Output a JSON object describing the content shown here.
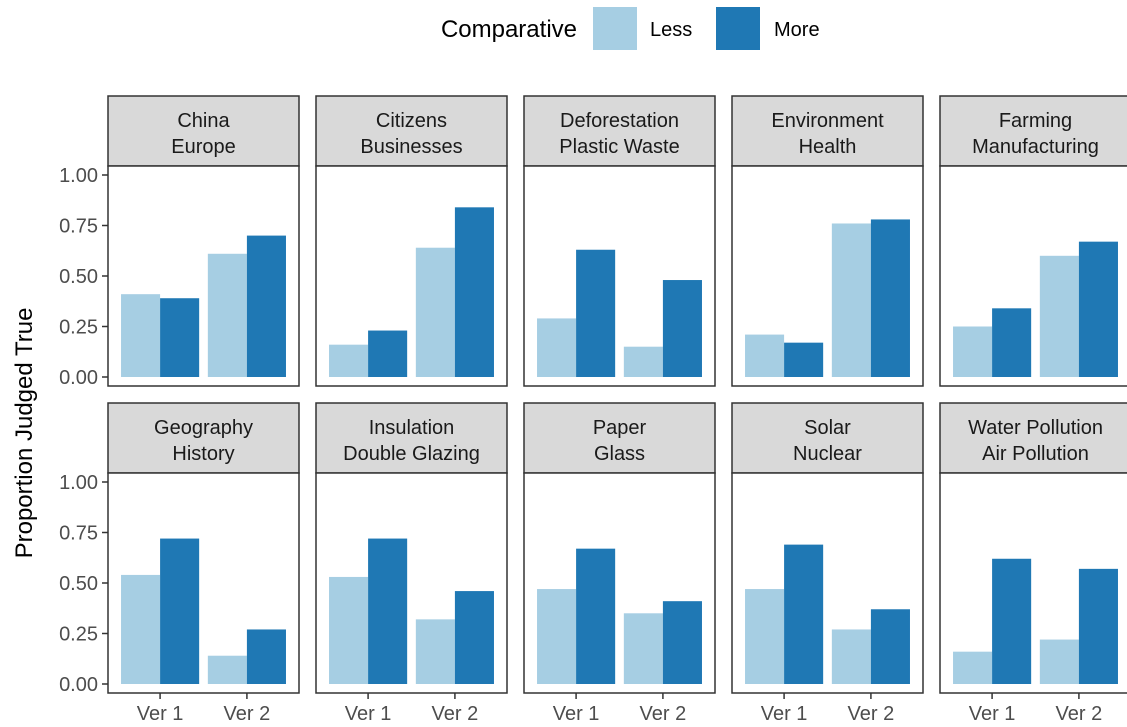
{
  "legend": {
    "title": "Comparative",
    "items": [
      {
        "label": "Less",
        "color": "#a6cee3"
      },
      {
        "label": "More",
        "color": "#1f78b4"
      }
    ],
    "position": "top"
  },
  "chart_data": {
    "type": "bar",
    "ylabel": "Proportion Judged True",
    "xlabel": "",
    "ylim": [
      0,
      1
    ],
    "yticks": [
      "0.00",
      "0.25",
      "0.50",
      "0.75",
      "1.00"
    ],
    "categories": [
      "Ver 1",
      "Ver 2"
    ],
    "series_names": [
      "Less",
      "More"
    ],
    "series_colors": [
      "#a6cee3",
      "#1f78b4"
    ],
    "panels": [
      {
        "title": [
          "China",
          "Europe"
        ],
        "values": {
          "Less": [
            0.41,
            0.61
          ],
          "More": [
            0.39,
            0.7
          ]
        }
      },
      {
        "title": [
          "Citizens",
          "Businesses"
        ],
        "values": {
          "Less": [
            0.16,
            0.64
          ],
          "More": [
            0.23,
            0.84
          ]
        }
      },
      {
        "title": [
          "Deforestation",
          "Plastic Waste"
        ],
        "values": {
          "Less": [
            0.29,
            0.15
          ],
          "More": [
            0.63,
            0.48
          ]
        }
      },
      {
        "title": [
          "Environment",
          "Health"
        ],
        "values": {
          "Less": [
            0.21,
            0.76
          ],
          "More": [
            0.17,
            0.78
          ]
        }
      },
      {
        "title": [
          "Farming",
          "Manufacturing"
        ],
        "values": {
          "Less": [
            0.25,
            0.6
          ],
          "More": [
            0.34,
            0.67
          ]
        }
      },
      {
        "title": [
          "Geography",
          "History"
        ],
        "values": {
          "Less": [
            0.54,
            0.14
          ],
          "More": [
            0.72,
            0.27
          ]
        }
      },
      {
        "title": [
          "Insulation",
          "Double Glazing"
        ],
        "values": {
          "Less": [
            0.53,
            0.32
          ],
          "More": [
            0.72,
            0.46
          ]
        }
      },
      {
        "title": [
          "Paper",
          "Glass"
        ],
        "values": {
          "Less": [
            0.47,
            0.35
          ],
          "More": [
            0.67,
            0.41
          ]
        }
      },
      {
        "title": [
          "Solar",
          "Nuclear"
        ],
        "values": {
          "Less": [
            0.47,
            0.27
          ],
          "More": [
            0.69,
            0.37
          ]
        }
      },
      {
        "title": [
          "Water Pollution",
          "Air Pollution"
        ],
        "values": {
          "Less": [
            0.16,
            0.22
          ],
          "More": [
            0.62,
            0.57
          ]
        }
      }
    ],
    "grid": false,
    "facet_layout": "2 rows x 5 columns"
  }
}
